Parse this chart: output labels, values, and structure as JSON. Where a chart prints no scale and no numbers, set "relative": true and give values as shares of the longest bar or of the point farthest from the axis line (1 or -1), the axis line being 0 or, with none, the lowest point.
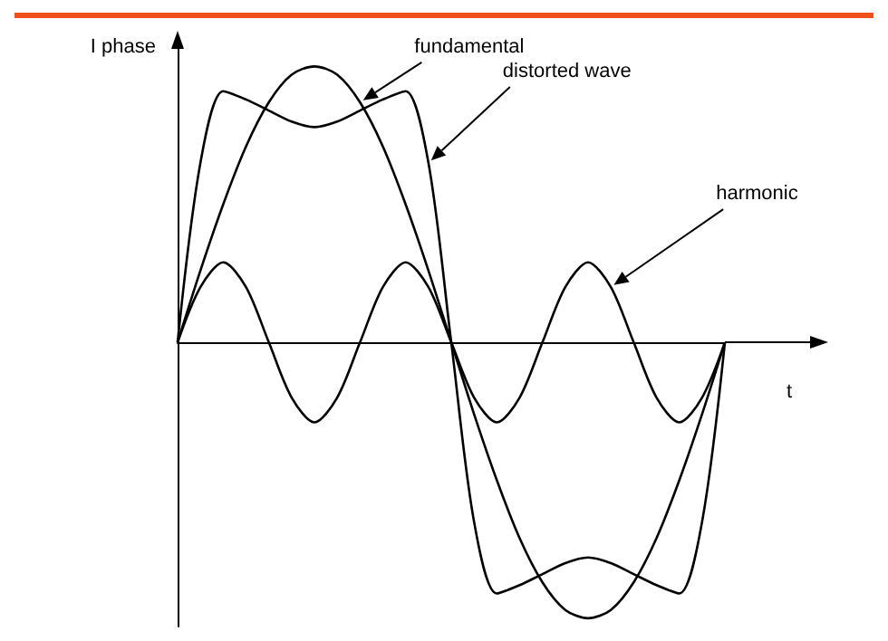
{
  "chart_data": {
    "type": "line",
    "relative": true,
    "xlabel": "t",
    "ylabel": "I phase",
    "grid": false,
    "legend": false,
    "marker": "none",
    "line_style": "solid",
    "categories": [
      null,
      null,
      null,
      null,
      null,
      null,
      null,
      null,
      null,
      null,
      null,
      null,
      null,
      null,
      null,
      null,
      null,
      null,
      null,
      null,
      null,
      null,
      null,
      null,
      null
    ],
    "series": [
      {
        "name": "fundamental",
        "color": "#000000",
        "values": [
          0,
          0.26,
          0.5,
          0.71,
          0.87,
          0.97,
          1,
          0.97,
          0.87,
          0.71,
          0.5,
          0.26,
          0,
          -0.26,
          -0.5,
          -0.71,
          -0.87,
          -0.97,
          -1,
          -0.97,
          -0.87,
          -0.71,
          -0.5,
          -0.26,
          0
        ]
      },
      {
        "name": "distorted wave",
        "color": "#000000",
        "values": [
          0,
          0.65,
          0.91,
          0.88,
          0.84,
          0.8,
          0.78,
          0.8,
          0.84,
          0.88,
          0.91,
          0.65,
          0,
          -0.65,
          -0.91,
          -0.88,
          -0.84,
          -0.8,
          -0.78,
          -0.8,
          -0.84,
          -0.88,
          -0.91,
          -0.65,
          0
        ]
      },
      {
        "name": "harmonic",
        "color": "#000000",
        "values": [
          0,
          0.2,
          0.29,
          0.2,
          0,
          -0.2,
          -0.29,
          -0.2,
          0,
          0.2,
          0.29,
          0.2,
          0,
          -0.2,
          -0.29,
          -0.2,
          0,
          0.2,
          0.29,
          0.2,
          0,
          -0.2,
          -0.29,
          -0.2,
          0
        ]
      }
    ]
  }
}
